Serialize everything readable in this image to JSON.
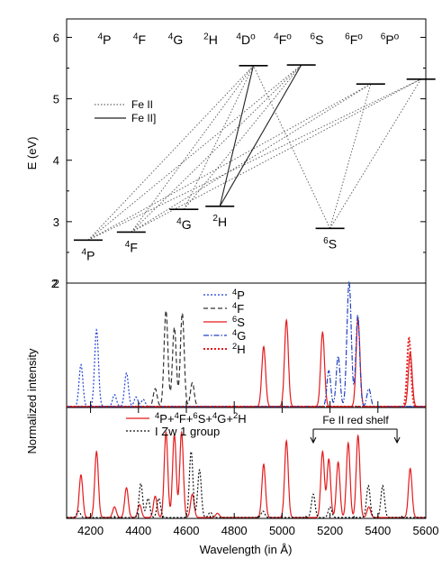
{
  "chart_data": [
    {
      "panel": "energy-level-diagram",
      "type": "scatter",
      "ylabel": "E (eV)",
      "ylim": [
        2,
        6.3
      ],
      "yticks": [
        "2",
        "3",
        "4",
        "5",
        "6"
      ],
      "top_labels": [
        {
          "sup": "4",
          "base": "P",
          "sup2": ""
        },
        {
          "sup": "4",
          "base": "F",
          "sup2": ""
        },
        {
          "sup": "4",
          "base": "G",
          "sup2": ""
        },
        {
          "sup": "2",
          "base": "H",
          "sup2": ""
        },
        {
          "sup": "4",
          "base": "D",
          "sup2": "o"
        },
        {
          "sup": "4",
          "base": "F",
          "sup2": "o"
        },
        {
          "sup": "6",
          "base": "S",
          "sup2": ""
        },
        {
          "sup": "6",
          "base": "F",
          "sup2": "o"
        },
        {
          "sup": "6",
          "base": "P",
          "sup2": "o"
        }
      ],
      "levels": [
        {
          "id": "4P",
          "x": 4190,
          "E": 2.7,
          "sup": "4",
          "base": "P"
        },
        {
          "id": "4F",
          "x": 4370,
          "E": 2.83,
          "sup": "4",
          "base": "F"
        },
        {
          "id": "4G",
          "x": 4590,
          "E": 3.2,
          "sup": "4",
          "base": "G"
        },
        {
          "id": "2H",
          "x": 4740,
          "E": 3.25,
          "sup": "2",
          "base": "H"
        },
        {
          "id": "4Do",
          "x": 4880,
          "E": 5.54
        },
        {
          "id": "4Fo",
          "x": 5080,
          "E": 5.55
        },
        {
          "id": "6S",
          "x": 5200,
          "E": 2.89,
          "sup": "6",
          "base": "S"
        },
        {
          "id": "6Fo",
          "x": 5370,
          "E": 5.24
        },
        {
          "id": "6Po",
          "x": 5580,
          "E": 5.32
        }
      ],
      "transitions": [
        {
          "from": "4P",
          "to": "4Do",
          "style": "dotted"
        },
        {
          "from": "4P",
          "to": "4Fo",
          "style": "dotted"
        },
        {
          "from": "4P",
          "to": "6Fo",
          "style": "dotted"
        },
        {
          "from": "4P",
          "to": "6Po",
          "style": "dotted"
        },
        {
          "from": "4F",
          "to": "4Do",
          "style": "dotted"
        },
        {
          "from": "4F",
          "to": "4Fo",
          "style": "dotted"
        },
        {
          "from": "4F",
          "to": "6Fo",
          "style": "dotted"
        },
        {
          "from": "4F",
          "to": "6Po",
          "style": "dotted"
        },
        {
          "from": "4G",
          "to": "4Do",
          "style": "dotted"
        },
        {
          "from": "4G",
          "to": "4Fo",
          "style": "dotted"
        },
        {
          "from": "2H",
          "to": "4Do",
          "style": "solid"
        },
        {
          "from": "2H",
          "to": "4Fo",
          "style": "solid"
        },
        {
          "from": "6S",
          "to": "4Do",
          "style": "dotted"
        },
        {
          "from": "6S",
          "to": "6Fo",
          "style": "dotted"
        },
        {
          "from": "6S",
          "to": "6Po",
          "style": "dotted"
        }
      ],
      "legend": [
        {
          "label": "Fe II",
          "style": "dotted"
        },
        {
          "label": "Fe II]",
          "style": "solid"
        }
      ]
    },
    {
      "panel": "component-spectra",
      "type": "line",
      "series": [
        {
          "sup": "4",
          "base": "P",
          "color": "#1f3fd6",
          "dash": "dotted",
          "peaks": [
            [
              4160,
              0.35
            ],
            [
              4225,
              0.64
            ],
            [
              4300,
              0.1
            ],
            [
              4350,
              0.28
            ],
            [
              4390,
              0.08
            ],
            [
              4420,
              0.06
            ]
          ]
        },
        {
          "sup": "4",
          "base": "F",
          "color": "#333333",
          "dash": "dashed",
          "peaks": [
            [
              4470,
              0.15
            ],
            [
              4515,
              0.8
            ],
            [
              4550,
              0.66
            ],
            [
              4583,
              0.78
            ],
            [
              4625,
              0.2
            ]
          ]
        },
        {
          "sup": "6",
          "base": "S",
          "color": "#e41a1c",
          "dash": "solid",
          "peaks": [
            [
              4923,
              0.5
            ],
            [
              5018,
              0.72
            ],
            [
              5169,
              0.62
            ],
            [
              5317,
              0.73
            ],
            [
              5535,
              0.45
            ]
          ]
        },
        {
          "sup": "4",
          "base": "G",
          "color": "#2040c0",
          "dash": "dashdot",
          "peaks": [
            [
              5195,
              0.3
            ],
            [
              5234,
              0.42
            ],
            [
              5276,
              0.62
            ],
            [
              5284,
              0.55
            ],
            [
              5316,
              0.76
            ],
            [
              5362,
              0.15
            ]
          ]
        },
        {
          "sup": "2",
          "base": "H",
          "color": "#e41a1c",
          "dash": "dotted-thick",
          "peaks": [
            [
              5530,
              0.57
            ]
          ]
        }
      ]
    },
    {
      "panel": "combined-spectra",
      "type": "line",
      "ylabel": "Normalized intensity",
      "xlabel": "Wavelength (in Å)",
      "xlim": [
        4100,
        5600
      ],
      "xticks": [
        "4200",
        "4400",
        "4600",
        "4800",
        "5000",
        "5200",
        "5400",
        "5600"
      ],
      "series": [
        {
          "name": "4P+4F+6S+4G+2H",
          "color": "#e41a1c",
          "dash": "solid",
          "peaks": [
            [
              4160,
              0.4
            ],
            [
              4225,
              0.62
            ],
            [
              4300,
              0.1
            ],
            [
              4350,
              0.28
            ],
            [
              4405,
              0.12
            ],
            [
              4470,
              0.2
            ],
            [
              4515,
              0.8
            ],
            [
              4550,
              0.78
            ],
            [
              4580,
              0.8
            ],
            [
              4625,
              0.22
            ],
            [
              4730,
              0.04
            ],
            [
              4923,
              0.5
            ],
            [
              5018,
              0.72
            ],
            [
              5169,
              0.62
            ],
            [
              5195,
              0.55
            ],
            [
              5234,
              0.52
            ],
            [
              5276,
              0.7
            ],
            [
              5317,
              0.77
            ],
            [
              5362,
              0.1
            ],
            [
              5535,
              0.46
            ]
          ]
        },
        {
          "name": "I Zw 1 group",
          "color": "#111111",
          "dash": "dotted",
          "peaks": [
            [
              4150,
              0.06
            ],
            [
              4410,
              0.32
            ],
            [
              4440,
              0.18
            ],
            [
              4485,
              0.18
            ],
            [
              4620,
              0.62
            ],
            [
              4655,
              0.45
            ],
            [
              4700,
              0.05
            ],
            [
              4920,
              0.06
            ],
            [
              5130,
              0.22
            ],
            [
              5200,
              0.1
            ],
            [
              5360,
              0.3
            ],
            [
              5420,
              0.3
            ]
          ]
        }
      ],
      "legend_parts": [
        {
          "sup": "4",
          "base": "P+"
        },
        {
          "sup": "4",
          "base": "F+"
        },
        {
          "sup": "6",
          "base": "S+"
        },
        {
          "sup": "4",
          "base": "G+"
        },
        {
          "sup": "2",
          "base": "H"
        }
      ],
      "legend_group_label": "I Zw 1 group",
      "annotation": {
        "text": "Fe II red shelf",
        "x_from": 5130,
        "x_to": 5480
      }
    }
  ]
}
